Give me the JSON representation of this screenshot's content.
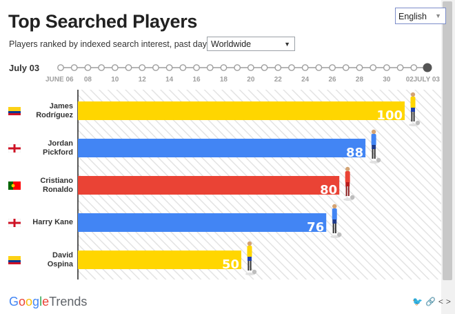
{
  "header": {
    "title": "Top Searched Players",
    "subtitle": "Players ranked by indexed search interest, past day.",
    "region": "Worldwide",
    "language": "English"
  },
  "timeline": {
    "current_date": "July 03",
    "tick_labels": [
      "JUNE 06",
      "08",
      "10",
      "12",
      "14",
      "16",
      "18",
      "20",
      "22",
      "24",
      "26",
      "28",
      "30",
      "02",
      "JULY 03"
    ],
    "node_count": 28,
    "selected_index": 27
  },
  "players": [
    {
      "name_line1": "James",
      "name_line2": "Rodríguez",
      "flag": "colombia",
      "country": "Colombia"
    },
    {
      "name_line1": "Jordan",
      "name_line2": "Pickford",
      "flag": "england",
      "country": "England"
    },
    {
      "name_line1": "Cristiano",
      "name_line2": "Ronaldo",
      "flag": "portugal",
      "country": "Portugal"
    },
    {
      "name_line1": "Harry Kane",
      "name_line2": "",
      "flag": "england",
      "country": "England"
    },
    {
      "name_line1": "David",
      "name_line2": "Ospina",
      "flag": "colombia",
      "country": "Colombia"
    }
  ],
  "chart_data": {
    "type": "bar",
    "orientation": "horizontal",
    "title": "Top Searched Players",
    "categories": [
      "James Rodríguez",
      "Jordan Pickford",
      "Cristiano Ronaldo",
      "Harry Kane",
      "David Ospina"
    ],
    "values": [
      100,
      88,
      80,
      76,
      50
    ],
    "value_labels": [
      "100",
      "88",
      "80",
      "76",
      "50"
    ],
    "bar_colors": [
      "#ffd600",
      "#4285f4",
      "#ea4335",
      "#4285f4",
      "#ffd600"
    ],
    "xlim": [
      0,
      100
    ],
    "grid": false,
    "legend": "none"
  },
  "footer": {
    "brand_google": "Google",
    "brand_trends": "Trends",
    "icons": [
      "twitter-icon",
      "link-icon",
      "embed-icon"
    ]
  }
}
